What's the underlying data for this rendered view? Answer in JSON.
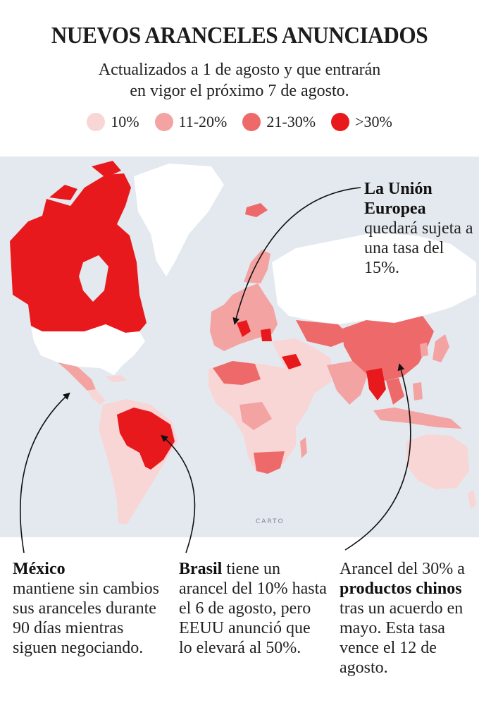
{
  "title": "NUEVOS ARANCELES ANUNCIADOS",
  "subtitle_line1": "Actualizados a 1 de agosto y que entrarán",
  "subtitle_line2": "en vigor el próximo 7 de  agosto.",
  "legend": [
    {
      "label": "10%",
      "color": "#f8d6d6"
    },
    {
      "label": "11-20%",
      "color": "#f4a3a3"
    },
    {
      "label": "21-30%",
      "color": "#ee6a6a"
    },
    {
      "label": ">30%",
      "color": "#e8191c"
    }
  ],
  "colors": {
    "ocean": "#e4e9ef",
    "land_none": "#ffffff",
    "tier_10": "#f8d6d6",
    "tier_11_20": "#f4a3a3",
    "tier_21_30": "#ee6a6a",
    "tier_over_30": "#e8191c",
    "no_data": "#d9d9d9"
  },
  "map_attribution": "CARTO",
  "annotations": {
    "eu": {
      "bold": "La Unión Europea",
      "text": "quedará sujeta a una tasa del 15%."
    },
    "mexico": {
      "bold": "México",
      "text": "mantiene sin cambios sus aranceles durante 90 días mientras siguen negociando."
    },
    "brasil": {
      "bold": "Brasil",
      "text": "tiene un arancel del 10% hasta el 6 de agosto, pero EEUU anunció que lo elevará al 50%."
    },
    "china": {
      "text_before": "Arancel del 30% a ",
      "bold": "productos chinos",
      "text_after": "tras un acuerdo en mayo. Esta tasa vence el 12 de agosto."
    }
  }
}
